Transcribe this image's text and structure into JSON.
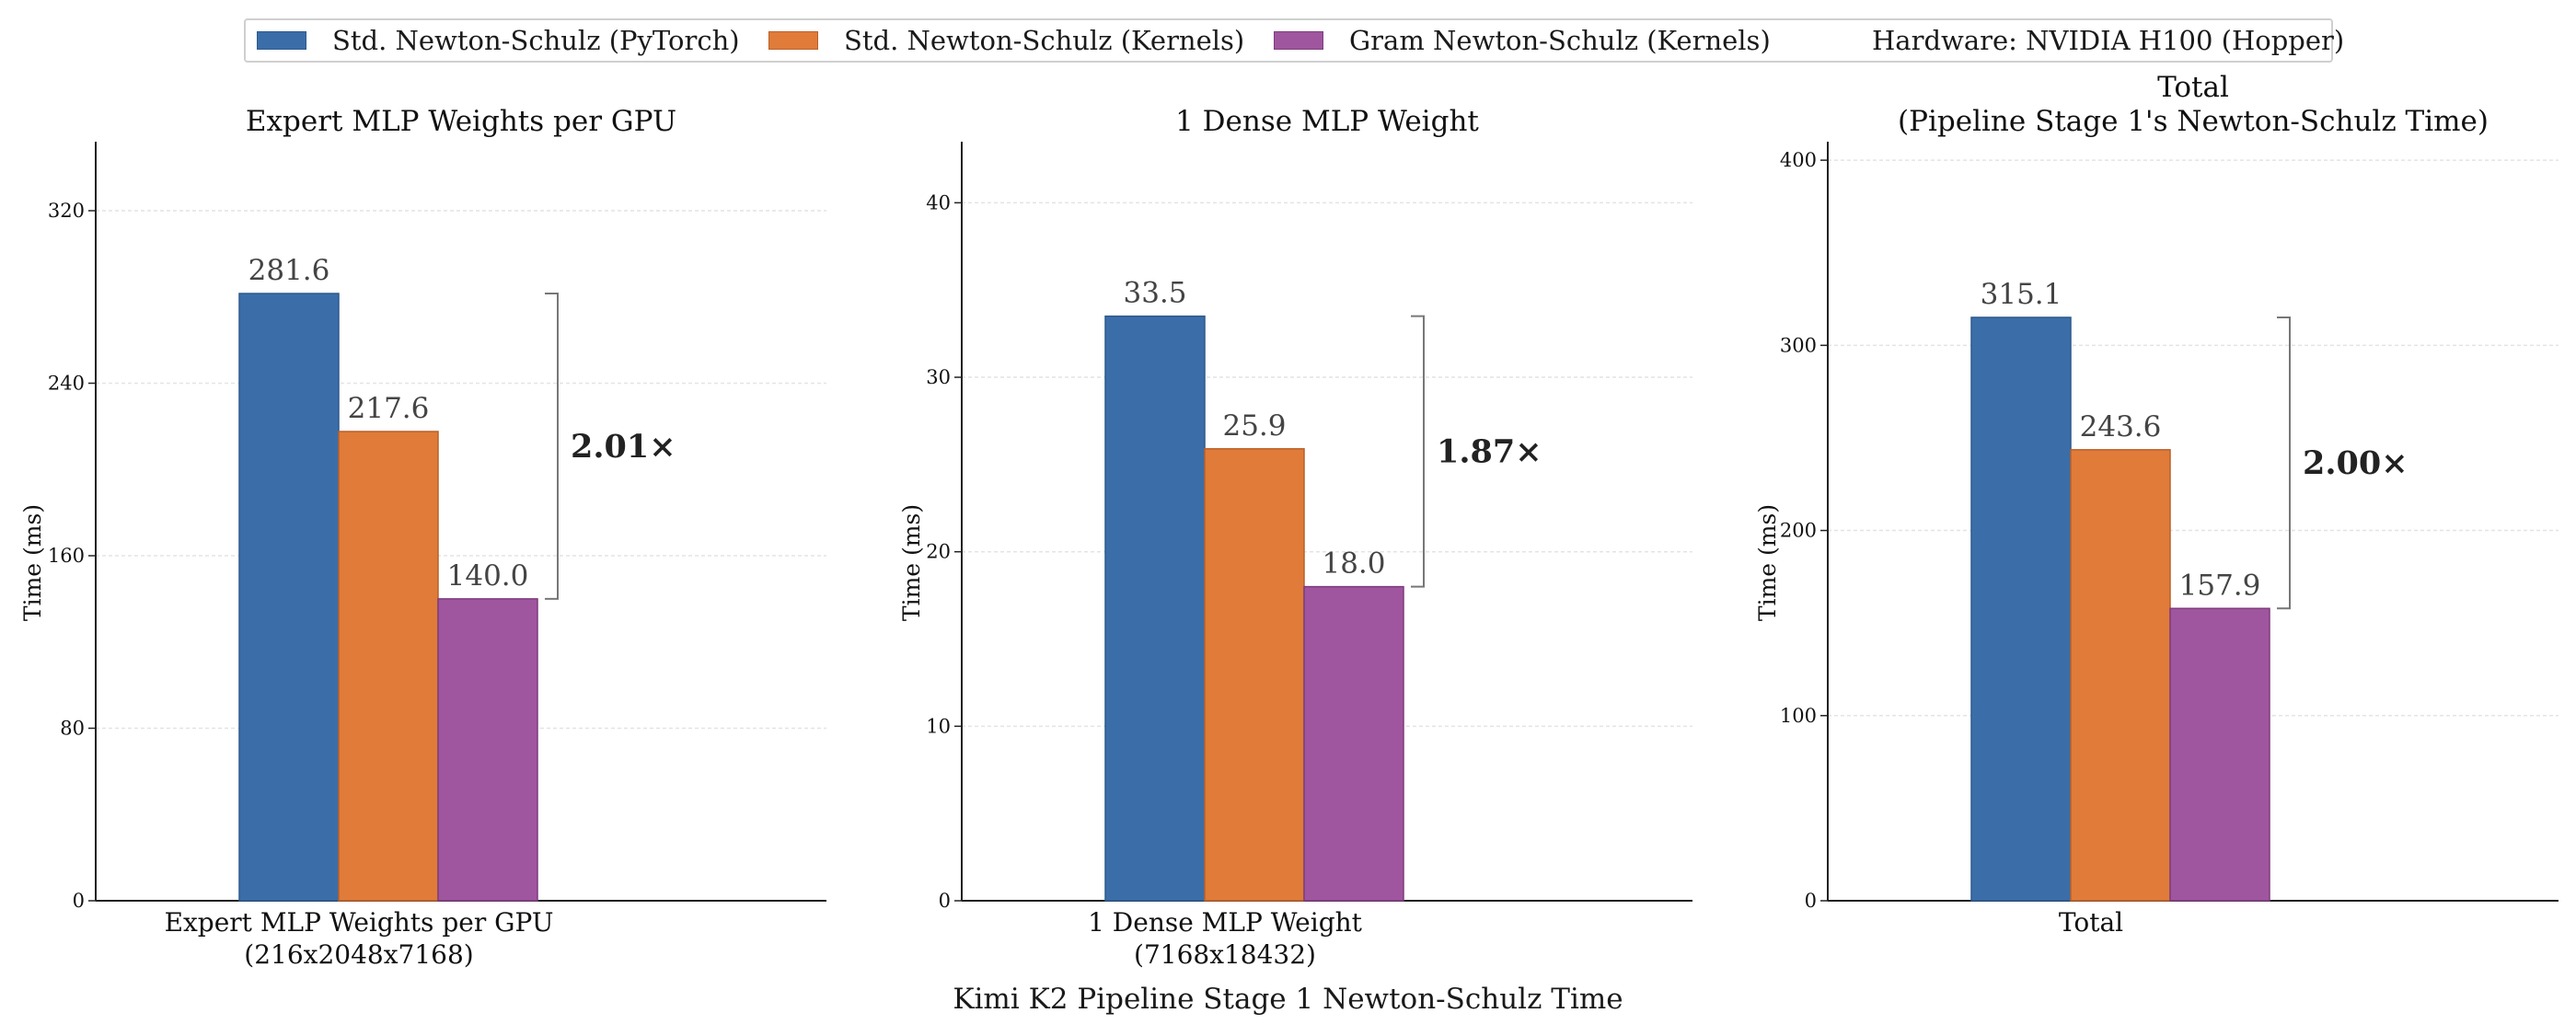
{
  "legend": {
    "items": [
      {
        "label": "Std. Newton-Schulz (PyTorch)",
        "color": "#3b6ea9"
      },
      {
        "label": "Std. Newton-Schulz (Kernels)",
        "color": "#e07b39"
      },
      {
        "label": "Gram Newton-Schulz (Kernels)",
        "color": "#a0559f"
      }
    ],
    "hardware": "Hardware: NVIDIA H100 (Hopper)"
  },
  "suptitle": "Kimi K2 Pipeline Stage 1 Newton-Schulz Time",
  "chart_data": [
    {
      "type": "bar",
      "title": "Expert MLP Weights per GPU",
      "categories": [
        "Expert MLP Weights per GPU\n(216x2048x7168)"
      ],
      "ylabel": "Time (ms)",
      "ylim": [
        0,
        352
      ],
      "yticks": [
        0,
        80,
        160,
        240,
        320
      ],
      "grid": "y",
      "series": [
        {
          "name": "Std. Newton-Schulz (PyTorch)",
          "values": [
            281.6
          ],
          "labels": [
            "281.6"
          ]
        },
        {
          "name": "Std. Newton-Schulz (Kernels)",
          "values": [
            217.6
          ],
          "labels": [
            "217.6"
          ]
        },
        {
          "name": "Gram Newton-Schulz (Kernels)",
          "values": [
            140.0
          ],
          "labels": [
            "140.0"
          ]
        }
      ],
      "speedup": "2.01×"
    },
    {
      "type": "bar",
      "title": "1 Dense MLP Weight",
      "categories": [
        "1 Dense MLP Weight\n(7168x18432)"
      ],
      "ylabel": "Time (ms)",
      "ylim": [
        0,
        43.5
      ],
      "yticks": [
        0,
        10,
        20,
        30,
        40
      ],
      "grid": "y",
      "series": [
        {
          "name": "Std. Newton-Schulz (PyTorch)",
          "values": [
            33.5
          ],
          "labels": [
            "33.5"
          ]
        },
        {
          "name": "Std. Newton-Schulz (Kernels)",
          "values": [
            25.9
          ],
          "labels": [
            "25.9"
          ]
        },
        {
          "name": "Gram Newton-Schulz (Kernels)",
          "values": [
            18.0
          ],
          "labels": [
            "18.0"
          ]
        }
      ],
      "speedup": "1.87×"
    },
    {
      "type": "bar",
      "title": "Total\n(Pipeline Stage 1's Newton-Schulz Time)",
      "categories": [
        "Total"
      ],
      "ylabel": "Time (ms)",
      "ylim": [
        0,
        410
      ],
      "yticks": [
        0,
        100,
        200,
        300,
        400
      ],
      "grid": "y",
      "series": [
        {
          "name": "Std. Newton-Schulz (PyTorch)",
          "values": [
            315.1
          ],
          "labels": [
            "315.1"
          ]
        },
        {
          "name": "Std. Newton-Schulz (Kernels)",
          "values": [
            243.6
          ],
          "labels": [
            "243.6"
          ]
        },
        {
          "name": "Gram Newton-Schulz (Kernels)",
          "values": [
            157.9
          ],
          "labels": [
            "157.9"
          ]
        }
      ],
      "speedup": "2.00×"
    }
  ]
}
